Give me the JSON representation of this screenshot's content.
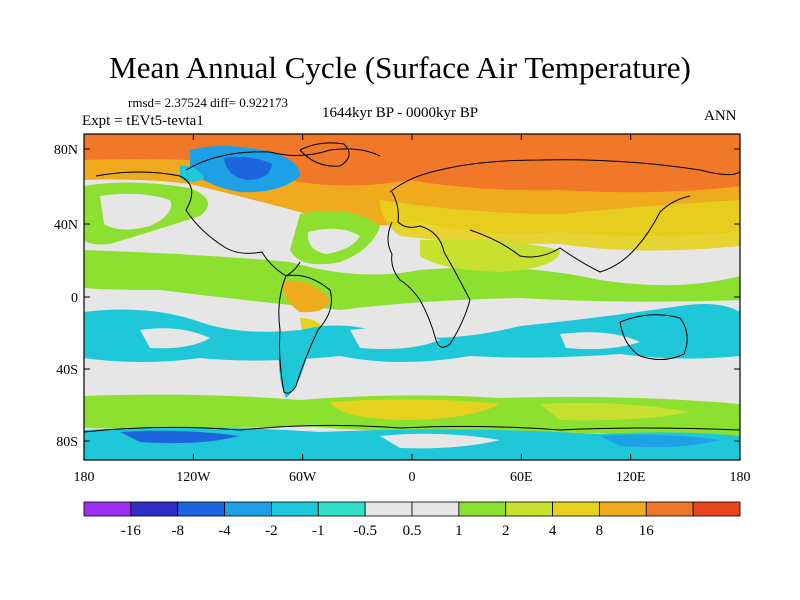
{
  "title": "Mean Annual Cycle (Surface Air Temperature)",
  "stats": "rmsd= 2.37524 diff= 0.922173",
  "period": "1644kyr BP - 0000kyr BP",
  "experiment": "Expt = tEVt5-tevta1",
  "season": "ANN",
  "lat_labels": [
    "80N",
    "40N",
    "0",
    "40S",
    "80S"
  ],
  "lon_labels": [
    "180",
    "120W",
    "60W",
    "0",
    "60E",
    "120E",
    "180"
  ],
  "colorbar": {
    "colors": [
      "#9b30f0",
      "#3030c8",
      "#1e64dc",
      "#1ea0e6",
      "#1ec8d8",
      "#30e0c8",
      "#e6e6e6",
      "#e6e6e6",
      "#8ce030",
      "#c8e030",
      "#e6d21e",
      "#f0aa1e",
      "#f07828",
      "#e6461e"
    ],
    "labels": [
      "-16",
      "-8",
      "-4",
      "-2",
      "-1",
      "-0.5",
      "0.5",
      "1",
      "2",
      "4",
      "8",
      "16"
    ]
  }
}
